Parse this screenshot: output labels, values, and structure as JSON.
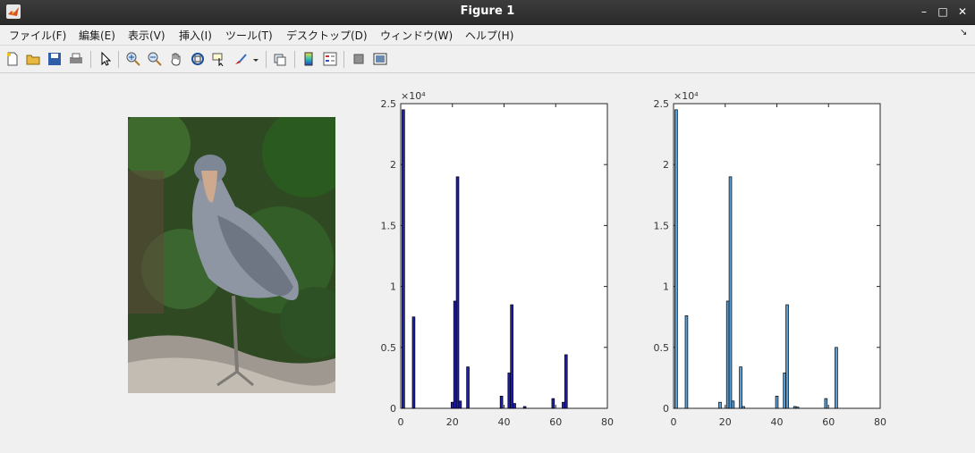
{
  "window": {
    "title": "Figure 1",
    "minimize": "–",
    "maximize": "□",
    "close": "✕"
  },
  "menu": [
    "ファイル(F)",
    "編集(E)",
    "表示(V)",
    "挿入(I)",
    "ツール(T)",
    "デスクトップ(D)",
    "ウィンドウ(W)",
    "ヘルプ(H)"
  ],
  "menu_corner_icon": "dock-arrow-icon",
  "toolbar": [
    "new-figure-icon",
    "open-icon",
    "save-icon",
    "print-icon",
    "pointer-icon",
    "zoom-in-icon",
    "zoom-out-icon",
    "pan-icon",
    "rotate-3d-icon",
    "data-cursor-icon",
    "brush-icon",
    "link-icon",
    "colorbar-icon",
    "legend-icon",
    "hide-plot-tools-icon",
    "show-plot-tools-icon"
  ],
  "colors": {
    "hist1": "#1f1fa8",
    "hist2": "#5aa0d8",
    "edge": "#000000"
  },
  "chart_data": [
    {
      "type": "bar",
      "x": [
        1,
        5,
        20,
        21,
        22,
        23,
        26,
        39,
        42,
        43,
        44,
        48,
        59,
        63,
        64
      ],
      "values": [
        24500,
        7500,
        500,
        8800,
        19000,
        600,
        3400,
        1000,
        2900,
        8500,
        400,
        150,
        800,
        500,
        4400
      ],
      "xlim": [
        0,
        80
      ],
      "ylim": [
        0,
        25000
      ],
      "xticks": [
        "0",
        "20",
        "40",
        "60",
        "80"
      ],
      "yticks": [
        "0",
        "0.5",
        "1",
        "1.5",
        "2",
        "2.5"
      ],
      "exponent_label": "×10⁴"
    },
    {
      "type": "bar",
      "x": [
        1,
        5,
        18,
        21,
        22,
        23,
        26,
        27,
        40,
        43,
        44,
        47,
        48,
        59,
        63
      ],
      "values": [
        24500,
        7600,
        500,
        8800,
        19000,
        600,
        3400,
        150,
        1000,
        2900,
        8500,
        150,
        100,
        800,
        5000
      ],
      "xlim": [
        0,
        80
      ],
      "ylim": [
        0,
        25000
      ],
      "xticks": [
        "0",
        "20",
        "40",
        "60",
        "80"
      ],
      "yticks": [
        "0",
        "0.5",
        "1",
        "1.5",
        "2",
        "2.5"
      ],
      "exponent_label": "×10⁴"
    }
  ]
}
